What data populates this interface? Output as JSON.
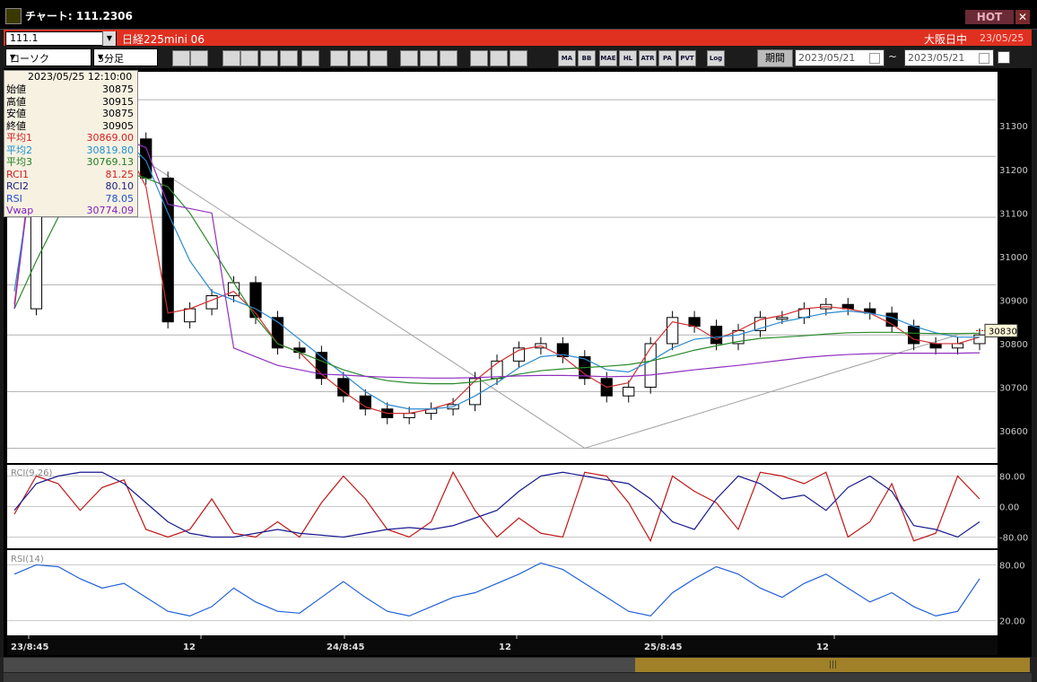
{
  "window": {
    "title": "チャート: 111.2306",
    "hot_label": "HOT",
    "close_label": "✕"
  },
  "symbol_bar": {
    "code": "111.1",
    "name": "日経225mini 06",
    "session": "大阪日中",
    "date": "23/05/25"
  },
  "toolbar": {
    "chart_type": "ローソク",
    "interval": "5分足",
    "buttons": [
      "MA",
      "BB",
      "MAE",
      "HL",
      "ATR",
      "PA",
      "PVT",
      "Log"
    ],
    "period_label": "期間",
    "date_from": "2023/05/21",
    "date_to": "2023/05/21",
    "tilde": "~"
  },
  "infobox": {
    "datetime": "2023/05/25  12:10:00",
    "rows": [
      {
        "label": "始値",
        "value": "30875",
        "color": "#000000"
      },
      {
        "label": "高値",
        "value": "30915",
        "color": "#000000"
      },
      {
        "label": "安値",
        "value": "30875",
        "color": "#000000"
      },
      {
        "label": "終値",
        "value": "30905",
        "color": "#000000"
      },
      {
        "label": "平均1",
        "value": "30869.00",
        "color": "#d02020"
      },
      {
        "label": "平均2",
        "value": "30819.80",
        "color": "#2090d0"
      },
      {
        "label": "平均3",
        "value": "30769.13",
        "color": "#208020"
      },
      {
        "label": "RCI1",
        "value": "81.25",
        "color": "#d02020"
      },
      {
        "label": "RCI2",
        "value": "80.10",
        "color": "#202080"
      },
      {
        "label": "RSI",
        "value": "78.05",
        "color": "#2050d0"
      },
      {
        "label": "Vwap",
        "value": "30774.09",
        "color": "#8020c0"
      }
    ]
  },
  "chart_data": {
    "type": "line",
    "x_tick_labels": [
      "23/8:45",
      "12",
      "24/8:45",
      "12",
      "25/8:45",
      "12"
    ],
    "price_panel": {
      "y_ticks": [
        30600,
        30700,
        30800,
        30900,
        31000,
        31100,
        31200,
        31300
      ],
      "ylim": [
        30530,
        31420
      ],
      "current_price": 30830,
      "close": [
        30880,
        31320,
        31310,
        31290,
        31280,
        31270,
        31180,
        30850,
        30880,
        30910,
        30940,
        30860,
        30790,
        30780,
        30720,
        30680,
        30650,
        30630,
        30640,
        30650,
        30660,
        30720,
        30760,
        30790,
        30800,
        30770,
        30720,
        30680,
        30700,
        30800,
        30860,
        30840,
        30800,
        30830,
        30860,
        30860,
        30880,
        30890,
        30880,
        30870,
        30840,
        30800,
        30790,
        30800,
        30820
      ],
      "series": [
        {
          "name": "平均1",
          "color": "#d03030",
          "values": [
            30890,
            31300,
            31300,
            31290,
            31280,
            31260,
            31160,
            30870,
            30880,
            30900,
            30920,
            30870,
            30800,
            30780,
            30730,
            30690,
            30655,
            30640,
            30640,
            30650,
            30665,
            30715,
            30755,
            30785,
            30795,
            30770,
            30730,
            30700,
            30710,
            30790,
            30850,
            30840,
            30810,
            30830,
            30855,
            30865,
            30880,
            30885,
            30880,
            30870,
            30845,
            30810,
            30800,
            30800,
            30815
          ]
        },
        {
          "name": "平均2",
          "color": "#2a8ad0",
          "values": [
            30920,
            31250,
            31300,
            31290,
            31280,
            31270,
            31220,
            31100,
            30990,
            30920,
            30900,
            30880,
            30850,
            30810,
            30770,
            30730,
            30690,
            30660,
            30650,
            30650,
            30655,
            30680,
            30710,
            30745,
            30770,
            30775,
            30765,
            30740,
            30735,
            30760,
            30790,
            30810,
            30815,
            30820,
            30835,
            30850,
            30860,
            30870,
            30875,
            30870,
            30860,
            30840,
            30825,
            30815,
            30815
          ]
        },
        {
          "name": "平均3",
          "color": "#2a8a2a",
          "values": [
            30880,
            30990,
            31090,
            31180,
            31200,
            31195,
            31180,
            31160,
            31100,
            31020,
            30940,
            30860,
            30800,
            30780,
            30760,
            30740,
            30725,
            30715,
            30710,
            30708,
            30708,
            30712,
            30720,
            30730,
            30738,
            30742,
            30745,
            30748,
            30752,
            30760,
            30772,
            30785,
            30795,
            30805,
            30812,
            30815,
            30818,
            30822,
            30825,
            30826,
            30826,
            30824,
            30823,
            30823,
            30824
          ]
        },
        {
          "name": "Vwap",
          "color": "#9030c0",
          "values": [
            30880,
            31290,
            31290,
            31290,
            31280,
            31270,
            31250,
            31120,
            31110,
            31100,
            30790,
            30770,
            30750,
            30740,
            30730,
            30728,
            30725,
            30723,
            30722,
            30721,
            30721,
            30722,
            30724,
            30726,
            30727,
            30727,
            30726,
            30724,
            30725,
            30728,
            30734,
            30740,
            30745,
            30750,
            30756,
            30762,
            30768,
            30772,
            30775,
            30777,
            30778,
            30778,
            30778,
            30778,
            30779
          ]
        }
      ],
      "hlines": [
        31360,
        31230,
        31090,
        30935,
        30820,
        30690,
        30560
      ],
      "trendlines": [
        [
          [
            2,
            31350
          ],
          [
            26,
            30560
          ]
        ],
        [
          [
            26,
            30560
          ],
          [
            43,
            30820
          ]
        ]
      ]
    },
    "rci_panel": {
      "label": "RCI(9,26)",
      "y_ticks": [
        80,
        0,
        -80
      ],
      "ylim": [
        -100,
        100
      ],
      "series": [
        {
          "name": "RCI1",
          "color": "#c01818",
          "values": [
            -20,
            80,
            60,
            -10,
            50,
            70,
            -60,
            -80,
            -60,
            20,
            -70,
            -80,
            -40,
            -80,
            10,
            80,
            20,
            -60,
            -80,
            -40,
            90,
            -10,
            -80,
            -30,
            -70,
            -80,
            90,
            80,
            10,
            -90,
            80,
            40,
            10,
            -60,
            90,
            80,
            60,
            90,
            -80,
            -40,
            60,
            -90,
            -70,
            80,
            20
          ]
        },
        {
          "name": "RCI2",
          "color": "#1a1a90",
          "values": [
            -10,
            60,
            80,
            90,
            90,
            60,
            10,
            -40,
            -70,
            -80,
            -80,
            -70,
            -60,
            -70,
            -75,
            -80,
            -70,
            -60,
            -55,
            -60,
            -50,
            -30,
            -10,
            40,
            80,
            90,
            80,
            70,
            60,
            20,
            -40,
            -60,
            20,
            80,
            60,
            20,
            30,
            -10,
            50,
            80,
            40,
            -50,
            -60,
            -80,
            -40
          ]
        }
      ]
    },
    "rsi_panel": {
      "label": "RSI(14)",
      "y_ticks": [
        80,
        20
      ],
      "ylim": [
        8,
        92
      ],
      "series": [
        {
          "name": "RSI",
          "color": "#2060d8",
          "values": [
            70,
            80,
            78,
            65,
            55,
            60,
            45,
            30,
            25,
            35,
            55,
            40,
            30,
            28,
            45,
            62,
            45,
            30,
            25,
            35,
            45,
            50,
            60,
            70,
            82,
            75,
            60,
            45,
            30,
            25,
            50,
            65,
            78,
            70,
            55,
            45,
            60,
            70,
            55,
            40,
            50,
            35,
            25,
            30,
            65
          ]
        }
      ]
    }
  }
}
